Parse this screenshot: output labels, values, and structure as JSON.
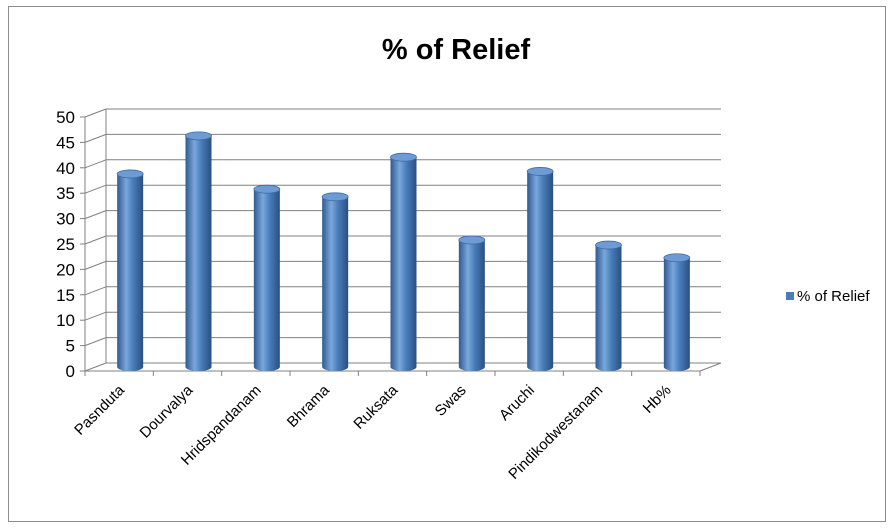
{
  "chart_data": {
    "type": "bar",
    "title": "% of Relief",
    "categories": [
      "Pasnduta",
      "Dourvalya",
      "Hridspandanam",
      "Bhrama",
      "Ruksata",
      "Swas",
      "Aruchi",
      "Pindikodwestanam",
      "Hb%"
    ],
    "series": [
      {
        "name": "% of Relief",
        "values": [
          38,
          45.5,
          35,
          33.5,
          41.3,
          25,
          38.5,
          24,
          21.5
        ]
      }
    ],
    "xlabel": "",
    "ylabel": "",
    "ylim": [
      0,
      50
    ],
    "yticks": [
      0,
      5,
      10,
      15,
      20,
      25,
      30,
      35,
      40,
      45,
      50
    ],
    "grid": true,
    "legend_position": "right",
    "colors": {
      "bar": "#4a7ebb",
      "bar_light": "#7aa7dc",
      "bar_dark": "#2f5a8f",
      "grid": "#808080"
    }
  }
}
